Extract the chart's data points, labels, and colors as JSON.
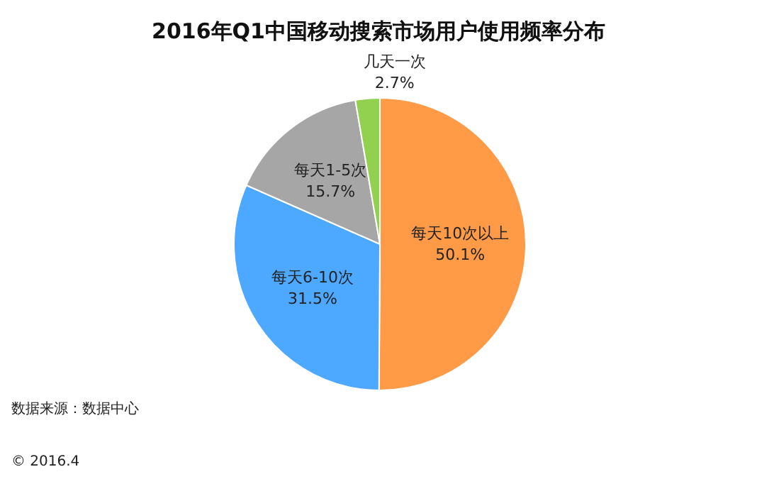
{
  "chart_data": {
    "type": "pie",
    "title": "2016年Q1中国移动搜索市场用户使用频率分布",
    "categories": [
      "每天10次以上",
      "每天6-10次",
      "每天1-5次",
      "几天一次"
    ],
    "values": [
      50.1,
      31.5,
      15.7,
      2.7
    ],
    "colors": [
      "#ff9a47",
      "#4da9ff",
      "#a6a6a6",
      "#92d050"
    ],
    "value_labels": [
      "50.1%",
      "31.5%",
      "15.7%",
      "2.7%"
    ],
    "annotations": [
      "数据来源：数据中心",
      "© 2016.4"
    ]
  }
}
